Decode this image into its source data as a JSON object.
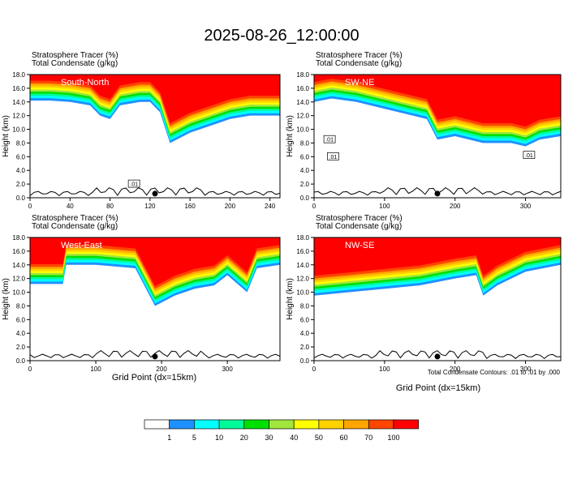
{
  "figure": {
    "title": "2025-08-26_12:00:00",
    "var_label_1": "Stratosphere Tracer   (%)",
    "var_label_2": "Total Condensate   (g/kg)",
    "xlabel": "Grid Point (dx=15km)",
    "ylabel": "Height (km)",
    "contour_note": "Total Condensate Contours: .01 to .01 by .000"
  },
  "colorbar": {
    "levels": [
      "1",
      "5",
      "10",
      "20",
      "30",
      "40",
      "50",
      "60",
      "70",
      "100"
    ],
    "colors": [
      "#ffffff",
      "#1e90ff",
      "#00ffff",
      "#00fa9a",
      "#00e000",
      "#a0e63c",
      "#ffff00",
      "#ffd200",
      "#ffa500",
      "#ff4500",
      "#ff0000"
    ]
  },
  "chart_data": [
    {
      "type": "heatmap",
      "section": "South-North",
      "title": "South-North",
      "xlabel": "",
      "ylabel": "Height (km)",
      "xlim": [
        0,
        250
      ],
      "ylim": [
        0,
        18
      ],
      "xticks": [
        "0",
        "40",
        "80",
        "120",
        "160",
        "200",
        "240"
      ],
      "yticks": [
        "0.0",
        "2.0",
        "4.0",
        "6.0",
        "8.0",
        "10.0",
        "12.0",
        "14.0",
        "16.0",
        "18.0"
      ],
      "marker_x": 125,
      "contour_labels": [
        {
          "text": ".01",
          "x": 104,
          "y": 2.0
        }
      ],
      "tracer_base_km": [
        [
          0,
          14.2
        ],
        [
          20,
          14.2
        ],
        [
          40,
          14.0
        ],
        [
          60,
          13.5
        ],
        [
          70,
          12.0
        ],
        [
          80,
          11.5
        ],
        [
          90,
          13.5
        ],
        [
          110,
          14.0
        ],
        [
          120,
          14.0
        ],
        [
          130,
          12.5
        ],
        [
          140,
          8.0
        ],
        [
          160,
          9.5
        ],
        [
          180,
          10.5
        ],
        [
          200,
          11.5
        ],
        [
          220,
          12.0
        ],
        [
          250,
          12.0
        ]
      ]
    },
    {
      "type": "heatmap",
      "section": "SW-NE",
      "title": "SW-NE",
      "xlabel": "",
      "ylabel": "Height (km)",
      "xlim": [
        0,
        350
      ],
      "ylim": [
        0,
        18
      ],
      "xticks": [
        "0",
        "100",
        "200",
        "300"
      ],
      "yticks": [
        "0.0",
        "2.0",
        "4.0",
        "6.0",
        "8.0",
        "10.0",
        "12.0",
        "14.0",
        "16.0",
        "18.0"
      ],
      "marker_x": 175,
      "contour_labels": [
        {
          "text": ".01",
          "x": 22,
          "y": 8.5
        },
        {
          "text": ".01",
          "x": 27,
          "y": 6.0
        },
        {
          "text": ".01",
          "x": 305,
          "y": 6.2
        }
      ],
      "tracer_base_km": [
        [
          0,
          14.0
        ],
        [
          25,
          14.5
        ],
        [
          60,
          14.0
        ],
        [
          100,
          13.0
        ],
        [
          140,
          12.0
        ],
        [
          160,
          11.5
        ],
        [
          175,
          8.5
        ],
        [
          200,
          9.0
        ],
        [
          240,
          8.0
        ],
        [
          280,
          8.0
        ],
        [
          300,
          7.5
        ],
        [
          320,
          8.5
        ],
        [
          350,
          9.0
        ]
      ]
    },
    {
      "type": "heatmap",
      "section": "West-East",
      "title": "West-East",
      "xlabel": "Grid Point (dx=15km)",
      "ylabel": "Height (km)",
      "xlim": [
        0,
        380
      ],
      "ylim": [
        0,
        18
      ],
      "xticks": [
        "0",
        "100",
        "200",
        "300"
      ],
      "yticks": [
        "0.0",
        "2.0",
        "4.0",
        "6.0",
        "8.0",
        "10.0",
        "12.0",
        "14.0",
        "16.0",
        "18.0"
      ],
      "marker_x": 190,
      "contour_labels": [],
      "tracer_base_km": [
        [
          0,
          11.2
        ],
        [
          50,
          11.2
        ],
        [
          55,
          14.0
        ],
        [
          100,
          14.0
        ],
        [
          160,
          13.5
        ],
        [
          190,
          8.0
        ],
        [
          220,
          9.5
        ],
        [
          250,
          10.5
        ],
        [
          280,
          11.0
        ],
        [
          300,
          12.5
        ],
        [
          330,
          10.0
        ],
        [
          345,
          13.5
        ],
        [
          380,
          14.0
        ]
      ]
    },
    {
      "type": "heatmap",
      "section": "NW-SE",
      "title": "NW-SE",
      "xlabel": "Grid Point (dx=15km)",
      "ylabel": "Height (km)",
      "xlim": [
        0,
        350
      ],
      "ylim": [
        0,
        18
      ],
      "xticks": [
        "0",
        "100",
        "200",
        "300"
      ],
      "yticks": [
        "0.0",
        "2.0",
        "4.0",
        "6.0",
        "8.0",
        "10.0",
        "12.0",
        "14.0",
        "16.0",
        "18.0"
      ],
      "marker_x": 175,
      "contour_labels": [],
      "tracer_base_km": [
        [
          0,
          9.5
        ],
        [
          50,
          10.0
        ],
        [
          100,
          10.5
        ],
        [
          150,
          11.0
        ],
        [
          200,
          12.0
        ],
        [
          230,
          12.5
        ],
        [
          240,
          9.5
        ],
        [
          260,
          11.0
        ],
        [
          280,
          12.0
        ],
        [
          300,
          13.0
        ],
        [
          350,
          14.0
        ]
      ]
    }
  ]
}
